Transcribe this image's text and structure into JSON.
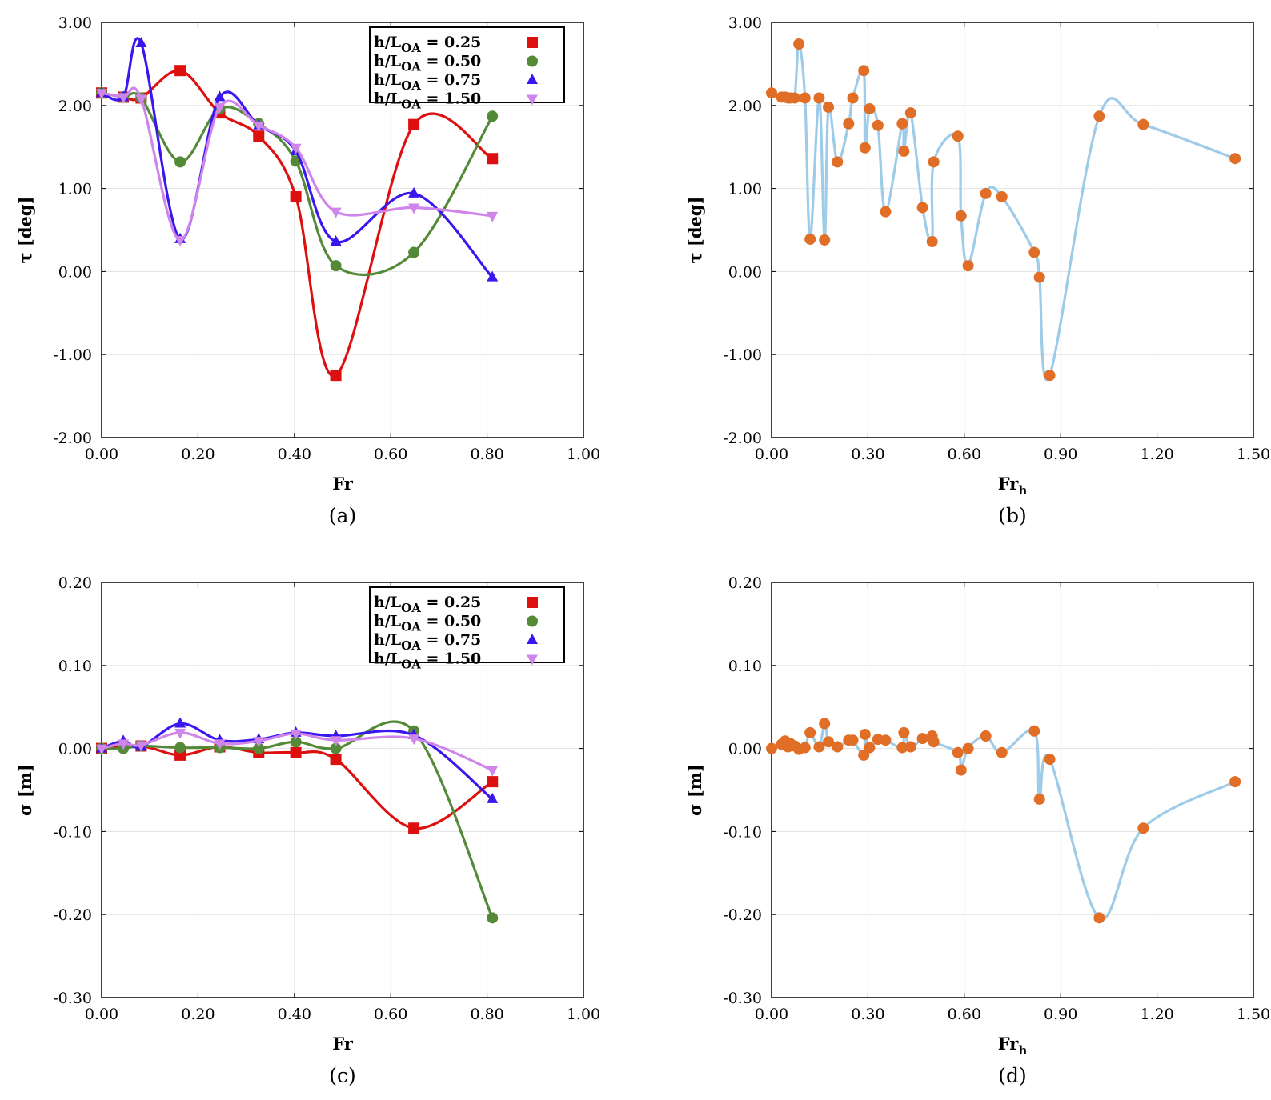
{
  "chart_data": [
    {
      "id": "a",
      "type": "line",
      "caption": "(a)",
      "xlabel": "Fr",
      "ylabel": "τ [deg]",
      "xlim": [
        0,
        1
      ],
      "ylim": [
        -2,
        3
      ],
      "xticks": [
        "0.00",
        "0.20",
        "0.40",
        "0.60",
        "0.80",
        "1.00"
      ],
      "yticks": [
        "-2.00",
        "-1.00",
        "0.00",
        "1.00",
        "2.00",
        "3.00"
      ],
      "grid": true,
      "legend": "top-right",
      "series": [
        {
          "name": "h/L_OA = 0.25",
          "label_main": "h/L",
          "label_sub": "OA",
          "label_tail": " = 0.25",
          "color": "#dd0f0f",
          "marker": "square",
          "x": [
            0,
            0.045,
            0.082,
            0.163,
            0.245,
            0.326,
            0.403,
            0.486,
            0.648,
            0.811
          ],
          "y": [
            2.15,
            2.1,
            2.09,
            2.42,
            1.91,
            1.63,
            0.9,
            -1.25,
            1.77,
            1.36
          ]
        },
        {
          "name": "h/L_OA = 0.50",
          "label_main": "h/L",
          "label_sub": "OA",
          "label_tail": " = 0.50",
          "color": "#548a37",
          "marker": "circle",
          "x": [
            0,
            0.045,
            0.082,
            0.163,
            0.245,
            0.326,
            0.403,
            0.486,
            0.648,
            0.811
          ],
          "y": [
            2.15,
            2.1,
            2.09,
            1.32,
            1.96,
            1.78,
            1.33,
            0.07,
            0.23,
            1.87
          ]
        },
        {
          "name": "h/L_OA = 0.75",
          "label_main": "h/L",
          "label_sub": "OA",
          "label_tail": " = 0.75",
          "color": "#3b17ef",
          "marker": "triangle-up",
          "x": [
            0,
            0.045,
            0.082,
            0.163,
            0.245,
            0.326,
            0.403,
            0.486,
            0.648,
            0.811
          ],
          "y": [
            2.15,
            2.1,
            2.75,
            0.39,
            2.1,
            1.76,
            1.45,
            0.36,
            0.94,
            -0.07
          ]
        },
        {
          "name": "h/L_OA = 1.50",
          "label_main": "h/L",
          "label_sub": "OA",
          "label_tail": " = 1.50",
          "color": "#cf85ea",
          "marker": "triangle-down",
          "x": [
            0,
            0.045,
            0.082,
            0.163,
            0.245,
            0.326,
            0.403,
            0.486,
            0.648,
            0.811
          ],
          "y": [
            2.15,
            2.1,
            2.08,
            0.38,
            1.98,
            1.76,
            1.49,
            0.72,
            0.77,
            0.67
          ]
        }
      ]
    },
    {
      "id": "b",
      "type": "line",
      "caption": "(b)",
      "xlabel": "Fr",
      "xlabel_sub": "h",
      "ylabel": "τ [deg]",
      "xlim": [
        0,
        1.5
      ],
      "ylim": [
        -2,
        3
      ],
      "xticks": [
        "0.00",
        "0.30",
        "0.60",
        "0.90",
        "1.20",
        "1.50"
      ],
      "yticks": [
        "-2.00",
        "-1.00",
        "0.00",
        "1.00",
        "2.00",
        "3.00"
      ],
      "grid": true,
      "line_color": "#9dcbe8",
      "marker_color": "#e06e26",
      "series": [
        {
          "name": "all",
          "x": [
            0,
            0.031,
            0.042,
            0.051,
            0.058,
            0.072,
            0.085,
            0.104,
            0.12,
            0.148,
            0.165,
            0.177,
            0.205,
            0.24,
            0.253,
            0.287,
            0.291,
            0.305,
            0.331,
            0.355,
            0.407,
            0.412,
            0.433,
            0.47,
            0.5,
            0.505,
            0.58,
            0.59,
            0.612,
            0.667,
            0.717,
            0.818,
            0.834,
            0.866,
            1.02,
            1.157,
            1.443
          ],
          "y": [
            2.15,
            2.1,
            2.1,
            2.09,
            2.09,
            2.09,
            2.74,
            2.09,
            0.39,
            2.09,
            0.38,
            1.98,
            1.32,
            1.78,
            2.09,
            2.42,
            1.49,
            1.96,
            1.76,
            0.72,
            1.78,
            1.45,
            1.91,
            0.77,
            0.36,
            1.32,
            1.63,
            0.67,
            0.07,
            0.94,
            0.9,
            0.23,
            -0.07,
            -1.25,
            1.87,
            1.77,
            1.36
          ]
        }
      ]
    },
    {
      "id": "c",
      "type": "line",
      "caption": "(c)",
      "xlabel": "Fr",
      "ylabel": "σ [m]",
      "xlim": [
        0,
        1
      ],
      "ylim": [
        -0.3,
        0.2
      ],
      "xticks": [
        "0.00",
        "0.20",
        "0.40",
        "0.60",
        "0.80",
        "1.00"
      ],
      "yticks": [
        "-0.30",
        "-0.20",
        "-0.10",
        "0.00",
        "0.10",
        "0.20"
      ],
      "grid": true,
      "legend": "top-right",
      "series": [
        {
          "name": "h/L_OA = 0.25",
          "label_main": "h/L",
          "label_sub": "OA",
          "label_tail": " = 0.25",
          "color": "#dd0f0f",
          "marker": "square",
          "x": [
            0,
            0.082,
            0.163,
            0.245,
            0.326,
            0.403,
            0.486,
            0.648,
            0.811
          ],
          "y": [
            0.0,
            0.003,
            -0.008,
            0.002,
            -0.005,
            -0.005,
            -0.013,
            -0.096,
            -0.04
          ]
        },
        {
          "name": "h/L_OA = 0.50",
          "label_main": "h/L",
          "label_sub": "OA",
          "label_tail": " = 0.50",
          "color": "#548a37",
          "marker": "circle",
          "x": [
            0,
            0.045,
            0.082,
            0.163,
            0.245,
            0.326,
            0.403,
            0.486,
            0.648,
            0.811
          ],
          "y": [
            0.0,
            0.0,
            0.003,
            0.001,
            0.001,
            0.0,
            0.008,
            0.0,
            0.021,
            -0.204
          ]
        },
        {
          "name": "h/L_OA = 0.75",
          "label_main": "h/L",
          "label_sub": "OA",
          "label_tail": " = 0.75",
          "color": "#3b17ef",
          "marker": "triangle-up",
          "x": [
            0,
            0.045,
            0.082,
            0.163,
            0.245,
            0.326,
            0.403,
            0.486,
            0.648,
            0.811
          ],
          "y": [
            0.0,
            0.009,
            0.002,
            0.03,
            0.01,
            0.011,
            0.019,
            0.015,
            0.016,
            -0.061
          ]
        },
        {
          "name": "h/L_OA = 1.50",
          "label_main": "h/L",
          "label_sub": "OA",
          "label_tail": " = 1.50",
          "color": "#cf85ea",
          "marker": "triangle-down",
          "x": [
            0,
            0.045,
            0.082,
            0.163,
            0.245,
            0.326,
            0.403,
            0.486,
            0.648,
            0.811
          ],
          "y": [
            0.0,
            0.006,
            0.004,
            0.019,
            0.006,
            0.009,
            0.018,
            0.01,
            0.012,
            -0.026
          ]
        }
      ]
    },
    {
      "id": "d",
      "type": "line",
      "caption": "(d)",
      "xlabel": "Fr",
      "xlabel_sub": "h",
      "ylabel": "σ [m]",
      "xlim": [
        0,
        1.5
      ],
      "ylim": [
        -0.3,
        0.2
      ],
      "xticks": [
        "0.00",
        "0.30",
        "0.60",
        "0.90",
        "1.20",
        "1.50"
      ],
      "yticks": [
        "-0.30",
        "-0.20",
        "-0.10",
        "0.00",
        "0.10",
        "0.20"
      ],
      "grid": true,
      "line_color": "#9dcbe8",
      "marker_color": "#e06e26",
      "series": [
        {
          "name": "all",
          "x": [
            0,
            0.031,
            0.042,
            0.051,
            0.058,
            0.072,
            0.085,
            0.104,
            0.12,
            0.148,
            0.165,
            0.177,
            0.205,
            0.24,
            0.253,
            0.287,
            0.291,
            0.305,
            0.331,
            0.355,
            0.407,
            0.412,
            0.433,
            0.47,
            0.5,
            0.505,
            0.58,
            0.59,
            0.612,
            0.667,
            0.717,
            0.818,
            0.834,
            0.866,
            1.02,
            1.157,
            1.443
          ],
          "y": [
            0.0,
            0.005,
            0.009,
            0.002,
            0.006,
            0.003,
            -0.001,
            0.001,
            0.019,
            0.002,
            0.03,
            0.008,
            0.002,
            0.01,
            0.01,
            -0.008,
            0.017,
            0.001,
            0.011,
            0.01,
            0.001,
            0.019,
            0.002,
            0.012,
            0.015,
            0.008,
            -0.005,
            -0.026,
            0.0,
            0.015,
            -0.005,
            0.021,
            -0.061,
            -0.013,
            -0.204,
            -0.096,
            -0.04
          ]
        }
      ]
    }
  ]
}
